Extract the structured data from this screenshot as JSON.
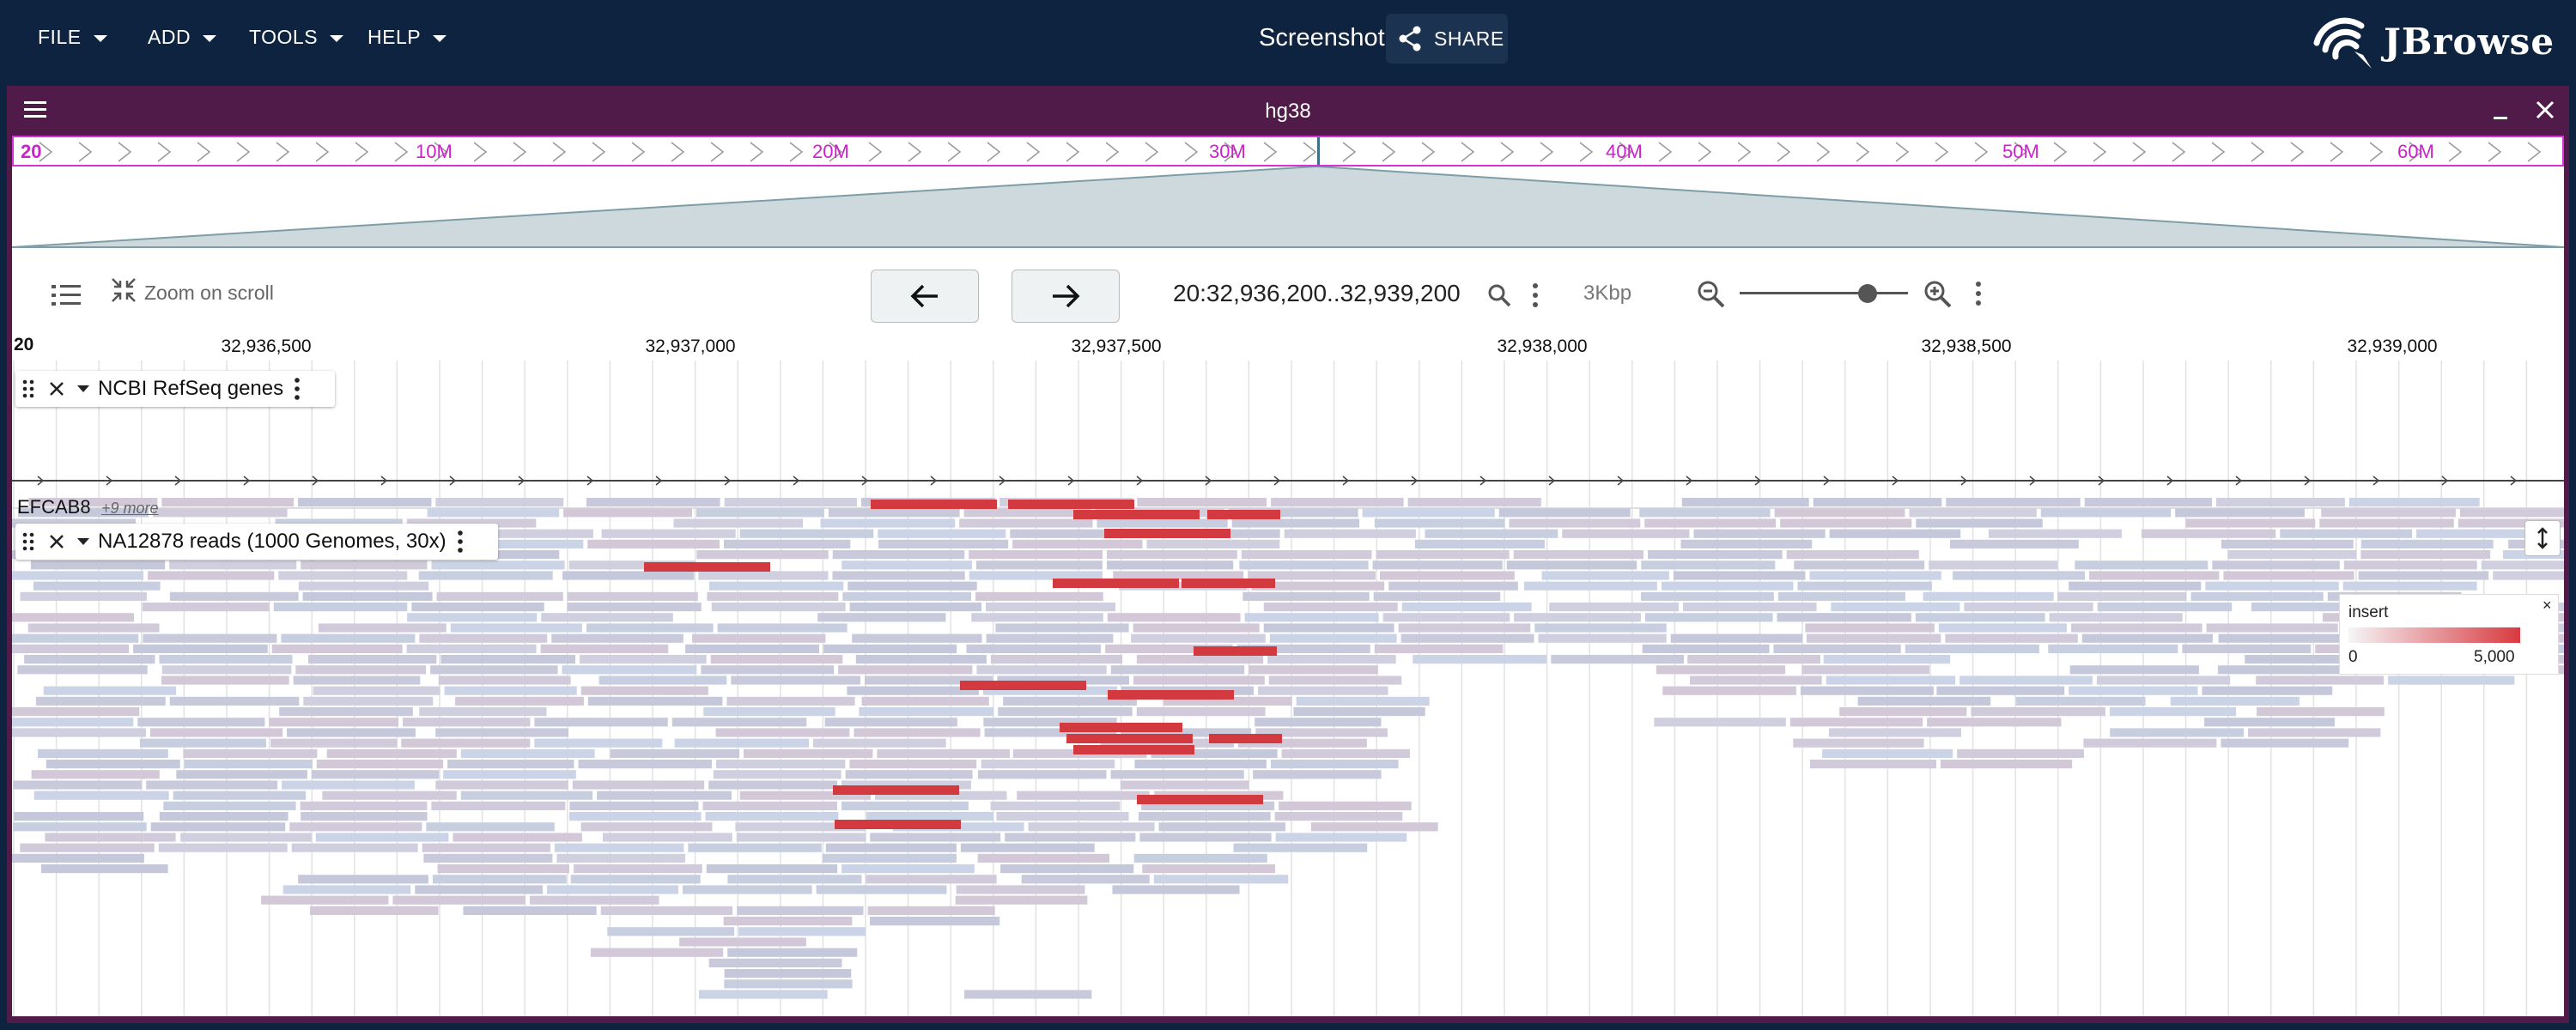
{
  "menus": [
    {
      "label": "FILE"
    },
    {
      "label": "ADD"
    },
    {
      "label": "TOOLS"
    },
    {
      "label": "HELP"
    }
  ],
  "session_name": "Screenshot",
  "share_label": "SHARE",
  "logo_text": "JBrowse",
  "view": {
    "title": "hg38",
    "overview": {
      "labels": [
        "20",
        "10M",
        "20M",
        "30M",
        "40M",
        "50M",
        "60M"
      ]
    },
    "controls": {
      "zoom_on_scroll": "Zoom on scroll",
      "location": "20:32,936,200..32,939,200",
      "span": "3Kbp",
      "zoom_level": 0.78
    },
    "ruler": {
      "chrom": "20",
      "ticks": [
        "32,936,500",
        "32,937,000",
        "32,937,500",
        "32,938,000",
        "32,938,500",
        "32,939,000"
      ]
    },
    "tracks": [
      {
        "name": "NCBI RefSeq genes",
        "feature": "EFCAB8",
        "more": "+9 more"
      },
      {
        "name": "NA12878 reads (1000 Genomes, 30x)"
      }
    ],
    "legend": {
      "title": "insert",
      "min": "0",
      "max": "5,000",
      "close": "×"
    }
  },
  "colors": {
    "app_bar": "#0d2340",
    "view_header": "#511b49",
    "overview_accent": "#cc22cc",
    "read_normal": "#c6c9dc",
    "read_long_insert": "#d33a3f"
  }
}
